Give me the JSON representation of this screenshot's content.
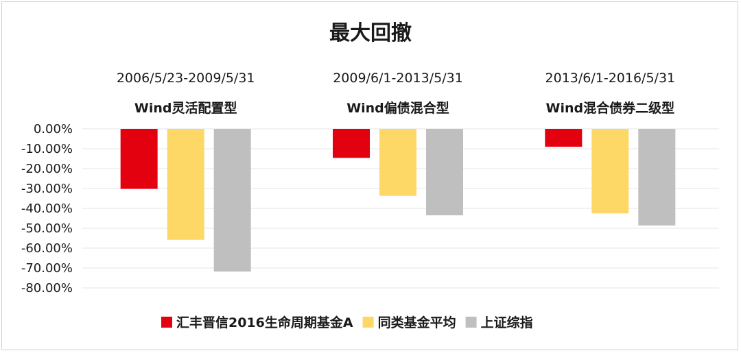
{
  "chart_data": {
    "type": "bar",
    "title": "最大回撤",
    "groups": [
      {
        "period": "2006/5/23-2009/5/31",
        "label": "Wind灵活配置型"
      },
      {
        "period": "2009/6/1-2013/5/31",
        "label": "Wind偏债混合型"
      },
      {
        "period": "2013/6/1-2016/5/31",
        "label": "Wind混合债券二级型"
      }
    ],
    "series": [
      {
        "name": "汇丰晋信2016生命周期基金A",
        "color": "#e3000f",
        "values": [
          -30.2,
          -14.6,
          -9.0
        ]
      },
      {
        "name": "同类基金平均",
        "color": "#fdd866",
        "values": [
          -55.8,
          -33.7,
          -42.5
        ]
      },
      {
        "name": "上证综指",
        "color": "#bfbfbf",
        "values": [
          -71.8,
          -43.5,
          -48.6
        ]
      }
    ],
    "ylim": [
      -80,
      0
    ],
    "yticks": [
      "0.00%",
      "-10.00%",
      "-20.00%",
      "-30.00%",
      "-40.00%",
      "-50.00%",
      "-60.00%",
      "-70.00%",
      "-80.00%"
    ],
    "grid": true,
    "legend_position": "bottom"
  }
}
